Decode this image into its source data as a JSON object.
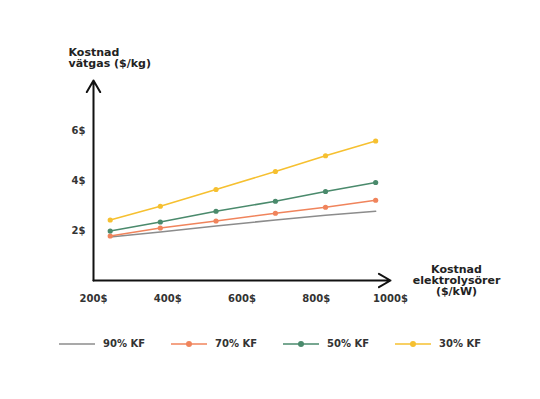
{
  "chart_data": {
    "type": "line",
    "y_label": "Kostnad vätgas ($/kg)",
    "x_label": "Kostnad elektrolysörer ($/kW)",
    "x": [
      245,
      380,
      530,
      690,
      825,
      960
    ],
    "xlim": [
      200,
      1000
    ],
    "xticks": [
      {
        "value": 200,
        "label": "200$"
      },
      {
        "value": 400,
        "label": "400$"
      },
      {
        "value": 600,
        "label": "600$"
      },
      {
        "value": 800,
        "label": "800$"
      },
      {
        "value": 1000,
        "label": "1000$"
      }
    ],
    "ylim": [
      0,
      8
    ],
    "yticks": [
      {
        "value": 2,
        "label": "2$"
      },
      {
        "value": 4,
        "label": "4$"
      },
      {
        "value": 6,
        "label": "6$"
      }
    ],
    "grid": false,
    "legend": "bottom",
    "series": [
      {
        "name": "90% KF",
        "color": "#8c8c8c",
        "values": [
          1.74,
          1.94,
          2.18,
          2.42,
          2.61,
          2.77
        ]
      },
      {
        "name": "70% KF",
        "color": "#f0845c",
        "marker": "circle",
        "values": [
          1.78,
          2.1,
          2.38,
          2.69,
          2.93,
          3.21
        ]
      },
      {
        "name": "50% KF",
        "color": "#4a8a6c",
        "marker": "circle",
        "values": [
          1.98,
          2.34,
          2.77,
          3.17,
          3.56,
          3.92
        ]
      },
      {
        "name": "30% KF",
        "color": "#f6c030",
        "marker": "circle",
        "values": [
          2.42,
          2.97,
          3.64,
          4.36,
          4.99,
          5.58
        ]
      }
    ]
  }
}
